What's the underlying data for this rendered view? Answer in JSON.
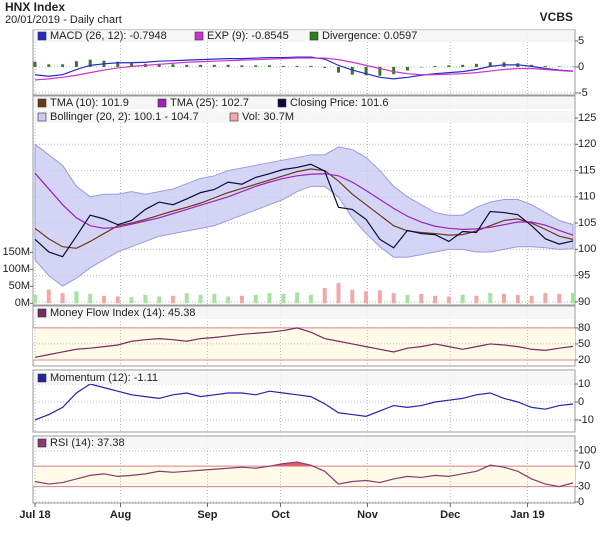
{
  "header": {
    "title": "HNX Index",
    "subtitle": "20/01/2019 - Daily chart",
    "brand": "VCBS"
  },
  "x_axis": {
    "xlim": [
      0,
      39
    ],
    "xticks": [
      {
        "value": 0,
        "label": "Jul 18"
      },
      {
        "value": 6.2,
        "label": "Aug"
      },
      {
        "value": 12.5,
        "label": "Sep"
      },
      {
        "value": 17.8,
        "label": "Oct"
      },
      {
        "value": 24.1,
        "label": "Nov"
      },
      {
        "value": 30.1,
        "label": "Dec"
      },
      {
        "value": 35.7,
        "label": "Jan 19"
      }
    ]
  },
  "chart_data": [
    {
      "type": "line",
      "ylim": [
        -5.4,
        7.1
      ],
      "yticks": [
        5,
        0,
        -5
      ],
      "grid": true,
      "series": [
        {
          "name": "MACD (26, 12): -0.7948",
          "kind": "line",
          "color": "#2a2ac8",
          "values": [
            -1.5,
            -1.8,
            -1.5,
            -0.5,
            0.3,
            0.6,
            0.8,
            0.8,
            0.9,
            1.1,
            1.2,
            1.3,
            1.4,
            1.5,
            1.6,
            1.6,
            1.7,
            1.8,
            1.8,
            1.9,
            1.9,
            1.5,
            0.3,
            -0.6,
            -1.3,
            -2.0,
            -2.3,
            -2.0,
            -1.6,
            -1.3,
            -1.1,
            -0.9,
            -0.5,
            0.1,
            0.4,
            0.4,
            0.1,
            -0.3,
            -0.6,
            -0.7948
          ]
        },
        {
          "name": "EXP (9): -0.8545",
          "kind": "line",
          "color": "#cc33cc",
          "values": [
            -2.5,
            -2.3,
            -2.0,
            -1.6,
            -1.1,
            -0.6,
            -0.2,
            0.1,
            0.3,
            0.5,
            0.7,
            0.9,
            1.0,
            1.1,
            1.2,
            1.3,
            1.4,
            1.5,
            1.6,
            1.7,
            1.7,
            1.7,
            1.4,
            0.9,
            0.3,
            -0.3,
            -0.9,
            -1.3,
            -1.5,
            -1.5,
            -1.4,
            -1.3,
            -1.1,
            -0.8,
            -0.5,
            -0.3,
            -0.3,
            -0.5,
            -0.7,
            -0.8545
          ]
        },
        {
          "name": "Divergence: 0.0597",
          "kind": "bar",
          "color": "#2e7d1e",
          "values": [
            1.0,
            0.5,
            0.5,
            1.1,
            1.4,
            1.2,
            1.0,
            0.7,
            0.6,
            0.6,
            0.5,
            0.4,
            0.4,
            0.4,
            0.4,
            0.3,
            0.3,
            0.3,
            0.2,
            0.2,
            0.2,
            -0.2,
            -1.1,
            -1.5,
            -1.6,
            -1.7,
            -1.4,
            -0.7,
            -0.1,
            0.2,
            0.3,
            0.4,
            0.6,
            0.9,
            0.9,
            0.7,
            0.4,
            0.2,
            0.1,
            0.0597
          ]
        }
      ]
    },
    {
      "type": "line",
      "ylim": [
        89.4,
        129.2
      ],
      "yticks": [
        125,
        120,
        115,
        110,
        105,
        100,
        95,
        90
      ],
      "grid": true,
      "y2lim": [
        -5,
        610
      ],
      "y2ticks": [
        {
          "value": 150,
          "label": "150M"
        },
        {
          "value": 100,
          "label": "100M"
        },
        {
          "value": 50,
          "label": "50M"
        },
        {
          "value": 0,
          "label": "0M"
        }
      ],
      "series": [
        {
          "name": "Bollinger (20, 2): 100.1 - 104.7",
          "kind": "band",
          "color": "#c9c9f2",
          "values": [
            120,
            118,
            116,
            112,
            110,
            110.5,
            110.5,
            111,
            110.5,
            111,
            111.5,
            112.5,
            113.5,
            114,
            115,
            115.5,
            116,
            116.5,
            117,
            117.5,
            118,
            118,
            119.5,
            119,
            117.5,
            115,
            112,
            110,
            108.5,
            107,
            106.5,
            106.5,
            108,
            109,
            109.5,
            109.5,
            108.5,
            107,
            105.5,
            104.7
          ],
          "values_lower": [
            98,
            95,
            93,
            94.5,
            96.5,
            98,
            99.5,
            100.5,
            101.5,
            102.5,
            103,
            103.5,
            104,
            104.5,
            105.5,
            106.5,
            107.5,
            108.5,
            109.5,
            111,
            112,
            112,
            110,
            106,
            103,
            100.5,
            98.5,
            98.5,
            99,
            99.5,
            100,
            100,
            99.5,
            99.5,
            100,
            100.5,
            100.5,
            100.3,
            100,
            100.1
          ]
        },
        {
          "name": "Vol: 30.7M",
          "kind": "volume",
          "axis": "y2",
          "color": "#f0a8a8",
          "up_color": "#a6e3a0",
          "down_color": "#f0a8a8",
          "values": [
            25,
            40,
            30,
            35,
            28,
            22,
            20,
            18,
            25,
            20,
            22,
            30,
            25,
            28,
            20,
            22,
            25,
            30,
            28,
            32,
            25,
            45,
            60,
            40,
            35,
            38,
            30,
            25,
            28,
            22,
            20,
            25,
            22,
            30,
            28,
            25,
            22,
            30,
            28,
            30.7
          ]
        },
        {
          "name": "TMA (10): 101.9",
          "kind": "line",
          "color": "#6b3a1a",
          "values": [
            104,
            102,
            100.5,
            100.2,
            101.5,
            103,
            104.5,
            105,
            105.7,
            106.5,
            107.3,
            108,
            108.8,
            109.8,
            110.8,
            111.6,
            112.4,
            113.2,
            114,
            114.8,
            115.3,
            115,
            113,
            110.5,
            108.5,
            106.5,
            104.5,
            103.5,
            103.2,
            103,
            102.7,
            102.8,
            103.5,
            104.5,
            105.5,
            105.8,
            105,
            103.8,
            102.5,
            101.9
          ]
        },
        {
          "name": "TMA (25): 102.7",
          "kind": "line",
          "color": "#a020c0",
          "values": [
            114.5,
            111.5,
            108.5,
            106,
            104.5,
            104,
            104.2,
            104.8,
            105.4,
            106,
            106.8,
            107.6,
            108.4,
            109.2,
            110,
            111,
            112,
            112.8,
            113.5,
            114,
            114.3,
            114.4,
            114,
            112.8,
            111.2,
            109.5,
            107.8,
            106.3,
            105.2,
            104.4,
            104,
            103.8,
            103.9,
            104.2,
            104.7,
            105.2,
            105.2,
            104.6,
            103.6,
            102.7
          ]
        },
        {
          "name": "Closing Price: 101.6",
          "kind": "line",
          "color": "#0a0a3a",
          "values": [
            101.9,
            99.5,
            98.6,
            102.5,
            106.5,
            105.8,
            104.7,
            105.5,
            107.6,
            109.0,
            108.5,
            109.6,
            110.8,
            111.4,
            112.8,
            112.4,
            113.7,
            114.4,
            115.2,
            115.6,
            116.2,
            114.9,
            108.0,
            107.6,
            105.7,
            101.9,
            100.3,
            103.6,
            103.0,
            102.8,
            101.5,
            103.4,
            103.2,
            107.2,
            107.0,
            106.6,
            104.5,
            102.0,
            101.0,
            101.6
          ]
        }
      ]
    },
    {
      "type": "line",
      "ylim": [
        8.7,
        121
      ],
      "yticks": [
        80,
        50,
        20
      ],
      "grid": true,
      "levels": [
        80,
        20
      ],
      "series": [
        {
          "name": "Money Flow Index (14): 45.38",
          "kind": "line",
          "color": "#7a2a60",
          "values": [
            25,
            30,
            35,
            40,
            42,
            45,
            48,
            55,
            58,
            60,
            58,
            55,
            60,
            62,
            65,
            68,
            70,
            72,
            75,
            80,
            72,
            60,
            55,
            50,
            45,
            40,
            35,
            42,
            45,
            50,
            45,
            40,
            45,
            50,
            48,
            45,
            40,
            38,
            42,
            45.38
          ]
        }
      ]
    },
    {
      "type": "line",
      "ylim": [
        -16.7,
        17.8
      ],
      "yticks": [
        10,
        0,
        -10
      ],
      "grid": true,
      "series": [
        {
          "name": "Momentum (12): -1.11",
          "kind": "line",
          "color": "#2323a8",
          "values": [
            -10,
            -7,
            -3,
            5,
            10,
            8,
            6,
            4,
            3,
            2,
            4,
            5,
            3,
            4,
            5,
            5,
            4,
            6,
            5,
            4,
            3,
            -1,
            -6,
            -7,
            -8,
            -5,
            -2,
            -3,
            -2,
            0,
            1,
            2,
            4,
            5,
            2,
            0,
            -3,
            -4,
            -2,
            -1.11
          ]
        }
      ]
    },
    {
      "type": "line",
      "ylim": [
        -2,
        129
      ],
      "yticks": [
        100,
        70,
        30,
        0
      ],
      "grid": true,
      "levels": [
        70,
        30
      ],
      "series": [
        {
          "name": "RSI (14): 37.38",
          "kind": "line",
          "color": "#8a3a70",
          "over_color": "#e06070",
          "under_color": "#6a5ae0",
          "values": [
            40,
            35,
            38,
            45,
            52,
            55,
            50,
            52,
            55,
            60,
            58,
            60,
            62,
            64,
            66,
            68,
            66,
            70,
            75,
            78,
            72,
            60,
            35,
            40,
            42,
            38,
            45,
            50,
            48,
            52,
            50,
            55,
            60,
            72,
            68,
            60,
            45,
            35,
            30,
            37.38
          ]
        }
      ]
    }
  ]
}
